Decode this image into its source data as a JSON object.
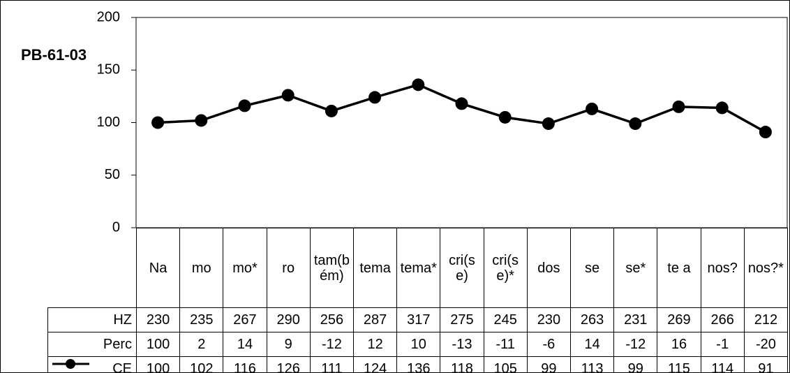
{
  "chart_data": {
    "type": "line",
    "title": "PB-61-03",
    "categories": [
      "Na",
      "mo",
      "mo*",
      "ro",
      "tam(bém)",
      "tema",
      "tema*",
      "cri(se)",
      "cri(se)*",
      "dos",
      "se",
      "se*",
      "te a",
      "nos?",
      "nos?*"
    ],
    "series": [
      {
        "name": "HZ",
        "values": [
          230,
          235,
          267,
          290,
          256,
          287,
          317,
          275,
          245,
          230,
          263,
          231,
          269,
          266,
          212
        ]
      },
      {
        "name": "Perc",
        "values": [
          100,
          2,
          14,
          9,
          -12,
          12,
          10,
          -13,
          -11,
          -6,
          14,
          -12,
          16,
          -1,
          -20
        ]
      },
      {
        "name": "CE",
        "color": "#000000",
        "values": [
          100,
          102,
          116,
          126,
          111,
          124,
          136,
          118,
          105,
          99,
          113,
          99,
          115,
          114,
          91
        ]
      }
    ],
    "ylim": [
      0,
      200
    ],
    "yticks": [
      0,
      50,
      100,
      150,
      200
    ],
    "data_table": true
  }
}
